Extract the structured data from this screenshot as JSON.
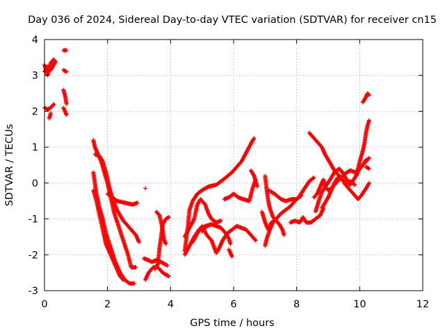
{
  "chart_data": {
    "type": "scatter",
    "title": "Day 036 of 2024, Sidereal Day-to-day VTEC variation (SDTVAR) for receiver cn15",
    "xlabel": "GPS time / hours",
    "ylabel": "SDTVAR / TECUs",
    "xlim": [
      0,
      12
    ],
    "ylim": [
      -3,
      4
    ],
    "xticks": [
      0,
      2,
      4,
      6,
      8,
      10,
      12
    ],
    "yticks": [
      -3,
      -2,
      -1,
      0,
      1,
      2,
      3,
      4
    ],
    "grid": true,
    "marker": "+",
    "color": "#ff0000",
    "segments": [
      [
        [
          0.0,
          3.1
        ],
        [
          0.1,
          3.25
        ],
        [
          0.2,
          3.15
        ],
        [
          0.3,
          3.3
        ],
        [
          0.35,
          3.4
        ]
      ],
      [
        [
          0.0,
          3.3
        ],
        [
          0.1,
          3.0
        ],
        [
          0.2,
          3.35
        ],
        [
          0.3,
          3.45
        ]
      ],
      [
        [
          0.0,
          2.1
        ],
        [
          0.1,
          2.05
        ],
        [
          0.2,
          2.1
        ],
        [
          0.3,
          2.2
        ]
      ],
      [
        [
          0.15,
          1.8
        ],
        [
          0.2,
          1.95
        ]
      ],
      [
        [
          0.6,
          3.7
        ],
        [
          0.7,
          3.7
        ]
      ],
      [
        [
          0.6,
          3.15
        ],
        [
          0.7,
          3.1
        ]
      ],
      [
        [
          0.6,
          2.6
        ],
        [
          0.65,
          2.45
        ],
        [
          0.7,
          2.2
        ]
      ],
      [
        [
          0.6,
          2.1
        ],
        [
          0.7,
          1.9
        ]
      ],
      [
        [
          1.55,
          1.2
        ],
        [
          1.6,
          1.0
        ],
        [
          1.7,
          0.8
        ],
        [
          1.8,
          0.6
        ],
        [
          1.9,
          0.3
        ],
        [
          2.0,
          0.0
        ],
        [
          2.1,
          -0.4
        ],
        [
          2.2,
          -0.8
        ],
        [
          2.35,
          -1.2
        ],
        [
          2.5,
          -1.6
        ],
        [
          2.65,
          -2.0
        ],
        [
          2.75,
          -2.35
        ],
        [
          2.9,
          -2.35
        ]
      ],
      [
        [
          1.6,
          0.8
        ],
        [
          1.75,
          0.75
        ],
        [
          1.85,
          0.6
        ],
        [
          1.95,
          0.3
        ],
        [
          2.05,
          -0.1
        ],
        [
          2.15,
          -0.4
        ],
        [
          2.3,
          -0.75
        ],
        [
          2.5,
          -1.05
        ],
        [
          2.7,
          -1.25
        ],
        [
          2.9,
          -1.45
        ],
        [
          3.0,
          -1.65
        ]
      ],
      [
        [
          1.55,
          0.3
        ],
        [
          1.6,
          0.0
        ],
        [
          1.65,
          -0.3
        ],
        [
          1.75,
          -0.7
        ],
        [
          1.85,
          -1.0
        ],
        [
          1.95,
          -1.4
        ],
        [
          2.1,
          -1.8
        ],
        [
          2.25,
          -2.2
        ],
        [
          2.4,
          -2.5
        ],
        [
          2.55,
          -2.7
        ],
        [
          2.7,
          -2.8
        ],
        [
          2.85,
          -2.8
        ]
      ],
      [
        [
          1.55,
          -0.2
        ],
        [
          1.65,
          -0.5
        ],
        [
          1.75,
          -0.9
        ],
        [
          1.85,
          -1.3
        ],
        [
          1.95,
          -1.7
        ],
        [
          2.1,
          -2.0
        ],
        [
          2.25,
          -2.3
        ],
        [
          2.4,
          -2.6
        ],
        [
          2.5,
          -2.7
        ]
      ],
      [
        [
          2.0,
          -0.3
        ],
        [
          2.3,
          -0.5
        ],
        [
          2.55,
          -0.55
        ],
        [
          2.8,
          -0.6
        ],
        [
          2.95,
          -0.55
        ]
      ],
      [
        [
          3.2,
          -0.15
        ]
      ],
      [
        [
          3.15,
          -2.1
        ],
        [
          3.3,
          -2.15
        ],
        [
          3.4,
          -2.2
        ],
        [
          3.55,
          -2.15
        ],
        [
          3.7,
          -2.2
        ],
        [
          3.9,
          -2.3
        ]
      ],
      [
        [
          3.2,
          -2.7
        ],
        [
          3.3,
          -2.5
        ],
        [
          3.45,
          -2.35
        ],
        [
          3.6,
          -2.35
        ],
        [
          3.75,
          -2.5
        ],
        [
          3.95,
          -2.6
        ]
      ],
      [
        [
          3.5,
          -2.4
        ],
        [
          3.6,
          -2.25
        ],
        [
          3.65,
          -1.8
        ],
        [
          3.7,
          -1.5
        ],
        [
          3.75,
          -1.15
        ],
        [
          3.85,
          -1.0
        ],
        [
          3.95,
          -0.95
        ]
      ],
      [
        [
          3.55,
          -0.8
        ],
        [
          3.65,
          -0.9
        ],
        [
          3.75,
          -1.3
        ],
        [
          3.8,
          -1.6
        ],
        [
          3.85,
          -1.7
        ]
      ],
      [
        [
          4.45,
          -1.9
        ],
        [
          4.55,
          -1.2
        ],
        [
          4.6,
          -0.75
        ],
        [
          4.7,
          -0.5
        ],
        [
          4.85,
          -0.3
        ],
        [
          5.0,
          -0.2
        ],
        [
          5.2,
          -0.1
        ],
        [
          5.45,
          -0.05
        ],
        [
          5.6,
          0.05
        ],
        [
          5.75,
          0.15
        ],
        [
          5.95,
          0.3
        ],
        [
          6.1,
          0.45
        ],
        [
          6.25,
          0.6
        ],
        [
          6.4,
          0.85
        ],
        [
          6.55,
          1.1
        ],
        [
          6.65,
          1.25
        ]
      ],
      [
        [
          4.45,
          -2.0
        ],
        [
          4.6,
          -1.75
        ],
        [
          4.75,
          -1.5
        ],
        [
          4.9,
          -1.3
        ],
        [
          5.1,
          -1.2
        ],
        [
          5.3,
          -1.15
        ],
        [
          5.45,
          -1.2
        ],
        [
          5.6,
          -1.25
        ],
        [
          5.75,
          -1.4
        ],
        [
          5.85,
          -1.55
        ],
        [
          5.9,
          -1.7
        ]
      ],
      [
        [
          4.45,
          -1.5
        ],
        [
          4.6,
          -1.25
        ],
        [
          4.75,
          -1.0
        ],
        [
          4.85,
          -0.6
        ],
        [
          4.95,
          -0.45
        ],
        [
          5.1,
          -0.6
        ],
        [
          5.2,
          -0.85
        ],
        [
          5.3,
          -1.0
        ],
        [
          5.45,
          -1.1
        ],
        [
          5.6,
          -1.05
        ]
      ],
      [
        [
          4.7,
          -1.65
        ],
        [
          4.85,
          -1.4
        ],
        [
          5.0,
          -1.2
        ],
        [
          5.15,
          -1.45
        ],
        [
          5.3,
          -1.6
        ],
        [
          5.45,
          -1.95
        ],
        [
          5.55,
          -1.8
        ],
        [
          5.65,
          -1.6
        ],
        [
          5.8,
          -1.4
        ],
        [
          5.95,
          -1.3
        ],
        [
          6.1,
          -1.2
        ],
        [
          6.25,
          -1.25
        ],
        [
          6.4,
          -1.3
        ],
        [
          6.55,
          -1.45
        ],
        [
          6.7,
          -1.6
        ]
      ],
      [
        [
          5.0,
          -1.35
        ],
        [
          5.15,
          -1.2
        ],
        [
          5.3,
          -1.15
        ]
      ],
      [
        [
          5.85,
          -1.85
        ],
        [
          5.95,
          -2.05
        ]
      ],
      [
        [
          5.7,
          -0.45
        ],
        [
          5.85,
          -0.4
        ],
        [
          6.0,
          -0.3
        ],
        [
          6.15,
          -0.4
        ],
        [
          6.3,
          -0.45
        ],
        [
          6.5,
          -0.5
        ],
        [
          6.6,
          -0.15
        ],
        [
          6.7,
          0.1
        ]
      ],
      [
        [
          6.55,
          0.35
        ],
        [
          6.65,
          0.2
        ],
        [
          6.75,
          -0.1
        ]
      ],
      [
        [
          7.0,
          0.2
        ],
        [
          7.05,
          -0.2
        ],
        [
          7.1,
          -0.5
        ],
        [
          7.15,
          -0.7
        ],
        [
          7.25,
          -0.95
        ],
        [
          7.35,
          -1.05
        ],
        [
          7.45,
          -1.15
        ],
        [
          7.55,
          -1.3
        ],
        [
          7.6,
          -1.45
        ]
      ],
      [
        [
          7.0,
          -1.75
        ],
        [
          7.05,
          -1.55
        ],
        [
          7.15,
          -1.3
        ],
        [
          7.25,
          -1.1
        ],
        [
          7.35,
          -1.0
        ],
        [
          7.5,
          -0.85
        ],
        [
          7.65,
          -0.75
        ],
        [
          7.8,
          -0.65
        ],
        [
          7.95,
          -0.5
        ],
        [
          8.1,
          -0.35
        ],
        [
          8.25,
          -0.15
        ],
        [
          8.4,
          0.05
        ],
        [
          8.55,
          0.15
        ]
      ],
      [
        [
          6.9,
          -0.8
        ],
        [
          7.0,
          -1.1
        ],
        [
          7.1,
          -1.3
        ],
        [
          7.2,
          -1.1
        ],
        [
          7.35,
          -1.0
        ]
      ],
      [
        [
          7.1,
          -0.2
        ],
        [
          7.3,
          -0.3
        ],
        [
          7.5,
          -0.45
        ],
        [
          7.65,
          -0.5
        ],
        [
          7.85,
          -0.45
        ],
        [
          8.0,
          -0.45
        ],
        [
          8.15,
          -0.35
        ]
      ],
      [
        [
          7.8,
          -1.1
        ],
        [
          7.95,
          -1.05
        ],
        [
          8.1,
          -1.1
        ],
        [
          8.2,
          -0.95
        ],
        [
          8.3,
          -1.1
        ],
        [
          8.45,
          -1.1
        ],
        [
          8.6,
          -1.0
        ],
        [
          8.75,
          -0.9
        ],
        [
          8.85,
          -0.7
        ]
      ],
      [
        [
          8.4,
          1.4
        ],
        [
          8.5,
          1.3
        ],
        [
          8.65,
          1.15
        ],
        [
          8.8,
          1.0
        ],
        [
          8.9,
          0.8
        ],
        [
          9.0,
          0.65
        ],
        [
          9.1,
          0.5
        ],
        [
          9.2,
          0.35
        ],
        [
          9.35,
          0.2
        ],
        [
          9.5,
          0.05
        ],
        [
          9.6,
          -0.1
        ],
        [
          9.8,
          -0.3
        ],
        [
          9.95,
          -0.45
        ],
        [
          10.05,
          -0.35
        ],
        [
          10.2,
          -0.15
        ],
        [
          10.3,
          0.0
        ]
      ],
      [
        [
          8.55,
          -0.4
        ],
        [
          8.65,
          -0.3
        ],
        [
          8.75,
          -0.1
        ],
        [
          8.85,
          0.1
        ],
        [
          8.9,
          -0.1
        ],
        [
          9.0,
          -0.2
        ],
        [
          9.1,
          -0.15
        ],
        [
          9.2,
          -0.05
        ],
        [
          9.35,
          0.1
        ],
        [
          9.45,
          0.2
        ],
        [
          9.6,
          0.3
        ],
        [
          9.7,
          0.35
        ],
        [
          9.85,
          0.3
        ],
        [
          10.0,
          0.4
        ],
        [
          10.15,
          0.55
        ],
        [
          10.3,
          0.7
        ]
      ],
      [
        [
          8.6,
          -0.8
        ],
        [
          8.7,
          -0.5
        ],
        [
          8.8,
          -0.25
        ],
        [
          8.95,
          -0.05
        ],
        [
          9.1,
          0.15
        ],
        [
          9.2,
          0.3
        ],
        [
          9.35,
          0.4
        ],
        [
          9.45,
          0.3
        ],
        [
          9.55,
          0.15
        ],
        [
          9.7,
          -0.05
        ],
        [
          9.85,
          0.15
        ],
        [
          10.0,
          0.4
        ],
        [
          10.1,
          0.5
        ],
        [
          10.2,
          0.65
        ]
      ],
      [
        [
          8.8,
          -0.7
        ],
        [
          8.9,
          -0.55
        ],
        [
          9.0,
          -0.4
        ],
        [
          9.1,
          -0.2
        ],
        [
          9.2,
          0.0
        ],
        [
          9.3,
          0.15
        ],
        [
          9.45,
          0.1
        ],
        [
          9.55,
          -0.05
        ],
        [
          9.7,
          0.05
        ],
        [
          9.85,
          -0.05
        ]
      ],
      [
        [
          9.9,
          0.2
        ],
        [
          10.0,
          0.6
        ],
        [
          10.1,
          0.9
        ],
        [
          10.15,
          1.1
        ],
        [
          10.2,
          1.4
        ],
        [
          10.25,
          1.6
        ],
        [
          10.3,
          1.75
        ]
      ],
      [
        [
          10.1,
          2.25
        ],
        [
          10.2,
          2.4
        ],
        [
          10.25,
          2.5
        ],
        [
          10.3,
          2.45
        ]
      ],
      [
        [
          10.2,
          0.45
        ],
        [
          10.3,
          0.4
        ]
      ]
    ]
  }
}
